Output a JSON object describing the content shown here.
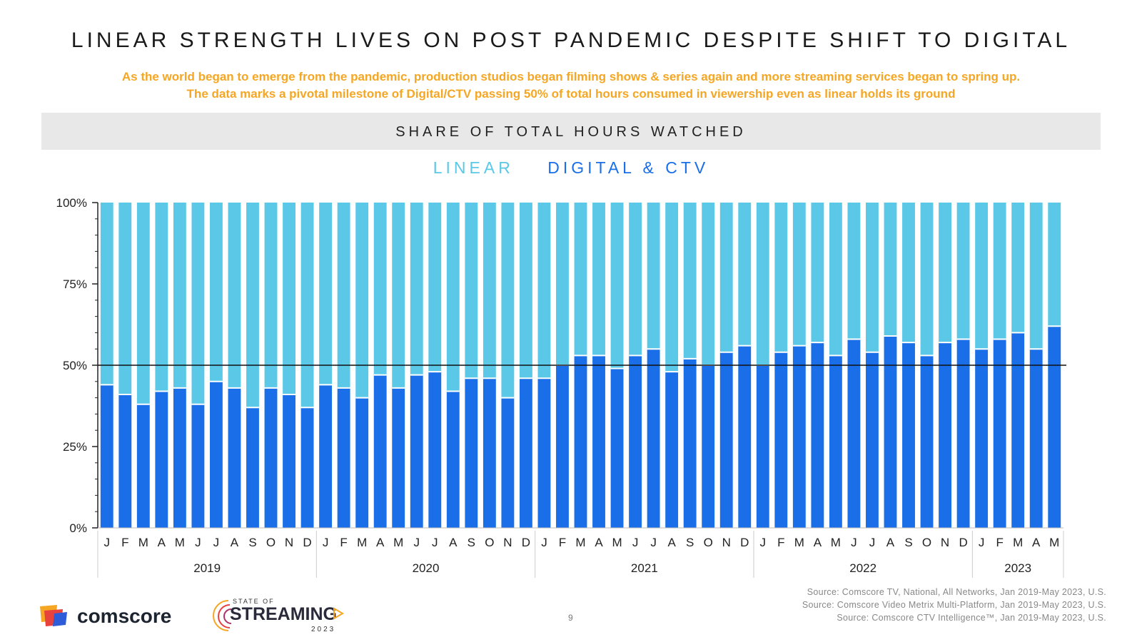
{
  "title": "LINEAR STRENGTH LIVES ON POST PANDEMIC DESPITE SHIFT TO DIGITAL",
  "subtitle_line1": "As the world began to emerge from the pandemic, production studios began filming shows & series again and more streaming services began to spring up.",
  "subtitle_line2": "The data marks a pivotal milestone of Digital/CTV passing 50% of total hours consumed in viewership even as linear holds its ground",
  "banner": "SHARE OF TOTAL HOURS WATCHED",
  "colors": {
    "linear": "#5bc8e8",
    "digital": "#1a6fe8",
    "subtitle": "#f5a623"
  },
  "chart_data": {
    "type": "bar",
    "stacked": true,
    "title": "SHARE OF TOTAL HOURS WATCHED",
    "ylim": [
      0,
      100
    ],
    "yticks": [
      "0%",
      "25%",
      "50%",
      "75%",
      "100%"
    ],
    "reference_line": 50,
    "legend": [
      "LINEAR",
      "DIGITAL & CTV"
    ],
    "categories": [
      "J",
      "F",
      "M",
      "A",
      "M",
      "J",
      "J",
      "A",
      "S",
      "O",
      "N",
      "D",
      "J",
      "F",
      "M",
      "A",
      "M",
      "J",
      "J",
      "A",
      "S",
      "O",
      "N",
      "D",
      "J",
      "F",
      "M",
      "A",
      "M",
      "J",
      "J",
      "A",
      "S",
      "O",
      "N",
      "D",
      "J",
      "F",
      "M",
      "A",
      "M",
      "J",
      "J",
      "A",
      "S",
      "O",
      "N",
      "D",
      "J",
      "F",
      "M",
      "A",
      "M"
    ],
    "years": [
      {
        "label": "2019",
        "count": 12
      },
      {
        "label": "2020",
        "count": 12
      },
      {
        "label": "2021",
        "count": 12
      },
      {
        "label": "2022",
        "count": 12
      },
      {
        "label": "2023",
        "count": 5
      }
    ],
    "series": [
      {
        "name": "DIGITAL & CTV",
        "values": [
          44,
          41,
          38,
          42,
          43,
          38,
          45,
          43,
          37,
          43,
          41,
          37,
          44,
          43,
          40,
          47,
          43,
          47,
          48,
          42,
          46,
          46,
          40,
          46,
          46,
          50,
          53,
          53,
          49,
          53,
          55,
          48,
          52,
          50,
          54,
          56,
          50,
          54,
          56,
          57,
          53,
          58,
          54,
          59,
          57,
          53,
          57,
          58,
          55,
          58,
          60,
          55,
          62
        ]
      },
      {
        "name": "LINEAR",
        "values": [
          56,
          59,
          62,
          58,
          57,
          62,
          55,
          57,
          63,
          57,
          59,
          63,
          56,
          57,
          60,
          53,
          57,
          53,
          52,
          58,
          54,
          54,
          60,
          54,
          54,
          50,
          47,
          47,
          51,
          47,
          45,
          52,
          48,
          50,
          46,
          44,
          50,
          46,
          44,
          43,
          47,
          42,
          46,
          41,
          43,
          47,
          43,
          42,
          45,
          42,
          40,
          45,
          38
        ]
      }
    ]
  },
  "footer": {
    "brand": "comscore",
    "sos_label": "STATE OF",
    "sos_main": "STREAMING",
    "sos_year": "2023",
    "page": "9",
    "sources": [
      "Source: Comscore TV, National, All Networks, Jan 2019-May 2023, U.S.",
      "Source: Comscore Video Metrix Multi-Platform, Jan 2019-May 2023, U.S.",
      "Source: Comscore CTV Intelligence™, Jan 2019-May 2023, U.S."
    ]
  }
}
